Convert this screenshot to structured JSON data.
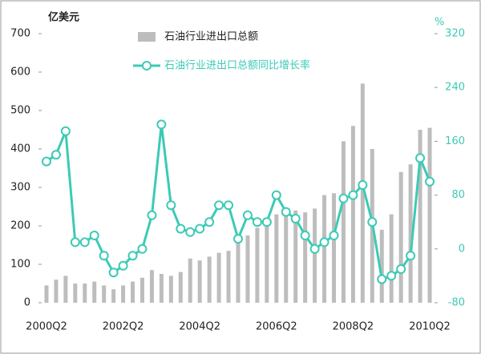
{
  "chart_data": {
    "type": "bar",
    "y_unit": "亿美元",
    "y2_unit": "%",
    "categories": [
      "2000Q2",
      null,
      null,
      null,
      null,
      null,
      null,
      null,
      "2002Q2",
      null,
      null,
      null,
      null,
      null,
      null,
      null,
      "2004Q2",
      null,
      null,
      null,
      null,
      null,
      null,
      null,
      "2006Q2",
      null,
      null,
      null,
      null,
      null,
      null,
      null,
      "2008Q2",
      null,
      null,
      null,
      null,
      null,
      null,
      null,
      "2010Q2"
    ],
    "series": [
      {
        "name": "石油行业进出口总额",
        "type": "bar",
        "color": "#bdbdbd",
        "values": [
          45,
          60,
          70,
          50,
          50,
          55,
          45,
          35,
          45,
          55,
          65,
          85,
          75,
          70,
          80,
          115,
          110,
          120,
          130,
          135,
          165,
          175,
          195,
          215,
          230,
          245,
          240,
          235,
          245,
          280,
          285,
          420,
          460,
          570,
          400,
          190,
          230,
          340,
          360,
          450,
          455
        ]
      },
      {
        "name": "石油行业进出口总额同比增长率",
        "type": "line",
        "axis": "y2",
        "color": "#3ccab5",
        "values": [
          130,
          140,
          175,
          10,
          10,
          20,
          -10,
          -35,
          -25,
          -10,
          0,
          50,
          185,
          65,
          30,
          25,
          30,
          40,
          65,
          65,
          15,
          50,
          40,
          40,
          80,
          55,
          45,
          20,
          0,
          10,
          20,
          75,
          80,
          95,
          40,
          -45,
          -40,
          -30,
          -10,
          135,
          100
        ]
      }
    ],
    "ylim": [
      0,
      700
    ],
    "yticks": [
      0,
      100,
      200,
      300,
      400,
      500,
      600,
      700
    ],
    "y2lim": [
      -80,
      320
    ],
    "y2ticks": [
      -80,
      0,
      80,
      160,
      240,
      320
    ],
    "grid": false
  }
}
